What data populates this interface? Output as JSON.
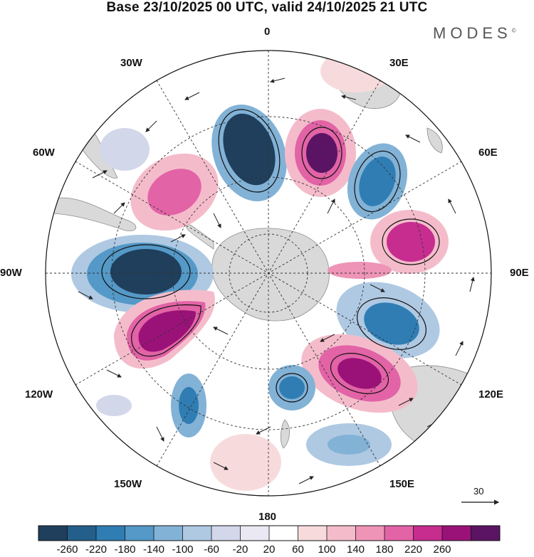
{
  "title": "Base 23/10/2025 00 UTC, valid 24/10/2025 21 UTC",
  "brand": "MODES",
  "brand_mark": "©",
  "map": {
    "projection": "south-polar-stereographic",
    "longitude_labels": [
      "0",
      "30E",
      "60E",
      "90E",
      "120E",
      "150E",
      "180",
      "150W",
      "120W",
      "90W",
      "60W",
      "30W"
    ],
    "vector_reference": "30"
  },
  "colorbar": {
    "ticks": [
      "-260",
      "-220",
      "-180",
      "-140",
      "-100",
      "-60",
      "-20",
      "20",
      "60",
      "100",
      "140",
      "180",
      "220",
      "260"
    ],
    "colors": [
      "#1f3f5c",
      "#235f8a",
      "#2f7db3",
      "#5499c7",
      "#82b2d6",
      "#afc9e3",
      "#d3d7ea",
      "#eae8f2",
      "#ffffff",
      "#f7dbdc",
      "#f4bccb",
      "#ee94b6",
      "#e263a6",
      "#c62d8f",
      "#9a1278",
      "#5b1463"
    ]
  },
  "anomaly_centers": [
    {
      "name": "negative-anomaly-west",
      "value": -260
    },
    {
      "name": "positive-anomaly-southwest",
      "value": 260
    },
    {
      "name": "negative-anomaly-north",
      "value": -260
    },
    {
      "name": "positive-anomaly-north-east",
      "value": 240
    },
    {
      "name": "negative-anomaly-northeast",
      "value": -200
    },
    {
      "name": "positive-anomaly-east",
      "value": 200
    },
    {
      "name": "negative-anomaly-east",
      "value": -200
    },
    {
      "name": "positive-anomaly-southeast",
      "value": 250
    },
    {
      "name": "positive-anomaly-northwest",
      "value": 160
    },
    {
      "name": "negative-anomaly-south-west",
      "value": -180
    },
    {
      "name": "negative-anomaly-south",
      "value": -200
    },
    {
      "name": "negative-anomaly-south-east",
      "value": -160
    }
  ]
}
